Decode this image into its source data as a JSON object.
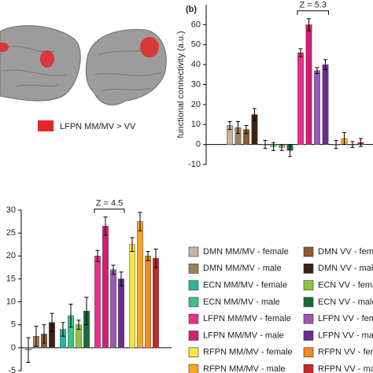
{
  "figure_label": "LFPN MM/MV > VV",
  "chart_data": [
    {
      "type": "bar",
      "panel_label": "(b)",
      "ylabel": "functional connectivity (a.u.)",
      "annotation": "Z = 5.3",
      "ylim": [
        -10,
        70
      ],
      "yticks": [
        -10,
        0,
        10,
        20,
        30,
        40,
        50,
        60
      ],
      "values": [
        9.5,
        8.5,
        7.5,
        15,
        0,
        -1,
        -1.5,
        -3,
        46,
        60,
        37,
        40,
        0,
        3,
        0,
        1
      ],
      "errors": [
        2,
        3,
        2,
        3,
        2,
        2,
        1.5,
        3,
        2,
        3,
        1.5,
        2.5,
        2,
        3,
        1.5,
        2
      ],
      "colors": [
        "#c9b49c",
        "#a07e5e",
        "#8b5a2b",
        "#3b2412",
        "#2ab5a0",
        "#3cc28a",
        "#8dc63f",
        "#1a6b3a",
        "#e8318a",
        "#d0206e",
        "#9b59b6",
        "#6a2c91",
        "#f5e642",
        "#f5a623",
        "#f08a24",
        "#c0282d"
      ]
    },
    {
      "type": "bar",
      "annotation": "Z = 4.5",
      "ylim": [
        -5,
        30
      ],
      "yticks": [
        -5,
        0,
        5,
        10,
        15,
        20,
        25,
        30
      ],
      "values": [
        -0.5,
        2.5,
        3,
        5.5,
        4,
        7,
        5,
        8,
        20,
        26.5,
        17,
        15,
        22.5,
        27.5,
        20,
        19.5
      ],
      "errors": [
        2.7,
        2.2,
        2,
        2,
        1.5,
        2.5,
        1,
        3,
        1.2,
        2,
        1,
        1.5,
        1.5,
        2,
        1,
        2
      ],
      "colors": [
        "#c9b49c",
        "#a07e5e",
        "#8b5a2b",
        "#3b2412",
        "#2ab5a0",
        "#3cc28a",
        "#8dc63f",
        "#1a6b3a",
        "#e8318a",
        "#d0206e",
        "#9b59b6",
        "#6a2c91",
        "#f5e642",
        "#f5a623",
        "#f08a24",
        "#c0282d"
      ],
      "legend": [
        "DMN MM/MV - female",
        "DMN MM/MV - male",
        "DMN VV - female",
        "DMN VV - male",
        "ECN MM/MV - female",
        "ECN MM/MV - male",
        "ECN VV - female",
        "ECN VV - male",
        "LFPN MM/MV - female",
        "LFPN MM/MV - male",
        "LFPN VV - female",
        "LFPN VV - male",
        "RFPN MM/MV - female",
        "RFPN MM/MV - male",
        "RFPN VV - female",
        "RFPN VV - male"
      ]
    }
  ]
}
